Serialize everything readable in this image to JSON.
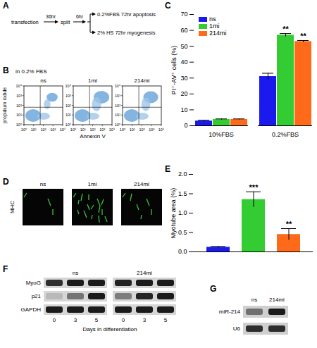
{
  "panel_labels": [
    "A",
    "B",
    "C",
    "D",
    "E",
    "F",
    "G"
  ],
  "schematic": {
    "start": "transfection",
    "step1": "36hr",
    "split": "split",
    "step2": "6hr",
    "branches": [
      "0.2%FBS 72hr apoptosis",
      "2% HS 72hr myogenesis"
    ]
  },
  "flow": {
    "condition": "in 0.2% FBS",
    "samples": [
      "ns",
      "1mi",
      "214mi"
    ],
    "x_label": "Annexin V",
    "y_label": "propidium iodide",
    "lim": [
      1,
      10000
    ],
    "ticks": [
      {
        "value": 1,
        "label": "10⁰"
      },
      {
        "value": 10,
        "label": "10¹"
      },
      {
        "value": 100,
        "label": "10²"
      },
      {
        "value": 1000,
        "label": "10³"
      },
      {
        "value": 10000,
        "label": "10⁴"
      }
    ]
  },
  "microscopy": {
    "stain": "MHC",
    "samples": [
      "ns",
      "1mi",
      "214mi"
    ]
  },
  "western": {
    "groups": [
      "ns",
      "214mi"
    ],
    "lanes": [
      "0",
      "3",
      "5"
    ],
    "x_label": "Days in differentiation",
    "bands": [
      {
        "name": "MyoG",
        "intensity": [
          [
            0.85,
            0.95,
            0.95
          ],
          [
            0.9,
            0.95,
            0.95
          ]
        ]
      },
      {
        "name": "p21",
        "intensity": [
          [
            0.15,
            0.5,
            0.95
          ],
          [
            0.45,
            0.9,
            0.95
          ]
        ]
      },
      {
        "name": "GAPDH",
        "intensity": [
          [
            0.95,
            0.95,
            0.95
          ],
          [
            0.95,
            0.95,
            0.95
          ]
        ]
      }
    ]
  },
  "gel": {
    "lanes": [
      "ns",
      "214mi"
    ],
    "bands": [
      {
        "name": "miR-214",
        "intensity": [
          0.5,
          0.95
        ]
      },
      {
        "name": "U6",
        "intensity": [
          0.85,
          0.85
        ]
      }
    ]
  },
  "chart_data": [
    {
      "type": "bar",
      "categories": [
        "10%FBS",
        "0.2%FBS"
      ],
      "series": [
        {
          "name": "ns",
          "color": "#1a1aee",
          "values": [
            3,
            31
          ],
          "errors": [
            0.5,
            2
          ]
        },
        {
          "name": "1mi",
          "color": "#33cc33",
          "values": [
            4,
            57
          ],
          "errors": [
            0.3,
            1
          ]
        },
        {
          "name": "214mi",
          "color": "#ff6a1a",
          "values": [
            4,
            53
          ],
          "errors": [
            0.3,
            0.6
          ]
        }
      ],
      "y_label": "PI⁺-AV⁺ cells (%)",
      "ylim": [
        0,
        70
      ],
      "yticks": [
        0,
        10,
        20,
        30,
        40,
        50,
        60,
        70
      ],
      "legend": "top-left",
      "annotations": [
        {
          "category": "0.2%FBS",
          "series": "1mi",
          "text": "**"
        },
        {
          "category": "0.2%FBS",
          "series": "214mi",
          "text": "**"
        }
      ]
    },
    {
      "type": "bar",
      "categories": [
        "ns",
        "1mi",
        "214mi"
      ],
      "values": [
        0.12,
        1.35,
        0.45
      ],
      "errors": [
        0.02,
        0.2,
        0.15
      ],
      "colors": [
        "#1a1aee",
        "#33cc33",
        "#ff6a1a"
      ],
      "y_label": "Myotube area (%)",
      "ylim": [
        0,
        2
      ],
      "yticks": [
        {
          "value": 0,
          "label": "0.0"
        },
        {
          "value": 0.5,
          "label": "0.5"
        },
        {
          "value": 1,
          "label": "1.0"
        },
        {
          "value": 1.5,
          "label": "1.5"
        },
        {
          "value": 2,
          "label": "2.0"
        }
      ],
      "tick_labels": "y",
      "annotations": [
        {
          "category": "1mi",
          "text": "***"
        },
        {
          "category": "214mi",
          "text": "**"
        }
      ]
    }
  ]
}
